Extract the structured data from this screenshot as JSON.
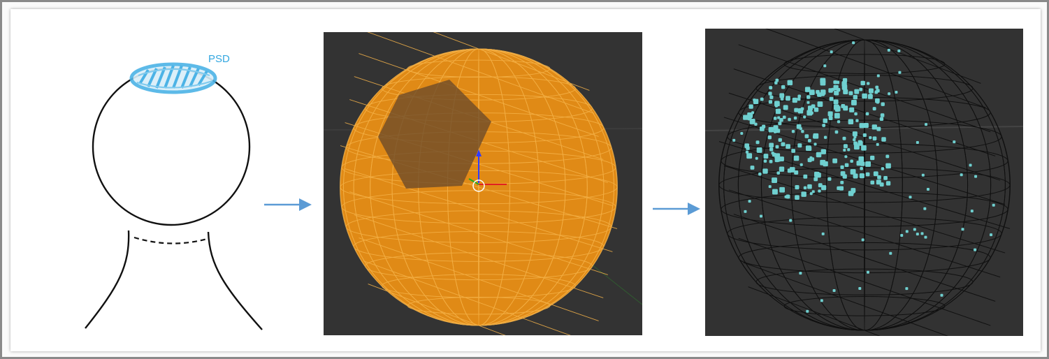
{
  "sketch": {
    "psd_label": "PSD",
    "psd_color": "#4cb3e6"
  },
  "mesh_panel": {
    "background": "#333333",
    "sphere_color": "#e08a16",
    "wire_color": "#f6b44a",
    "patch_color": "#6b4a2a",
    "icons": [
      "gizmo-axes-icon"
    ]
  },
  "points_panel": {
    "background": "#323232",
    "wire_color": "#0d0d0d",
    "point_color": "#6fd0d0"
  },
  "arrows": {
    "color": "#5b9bd5",
    "count": 2
  }
}
